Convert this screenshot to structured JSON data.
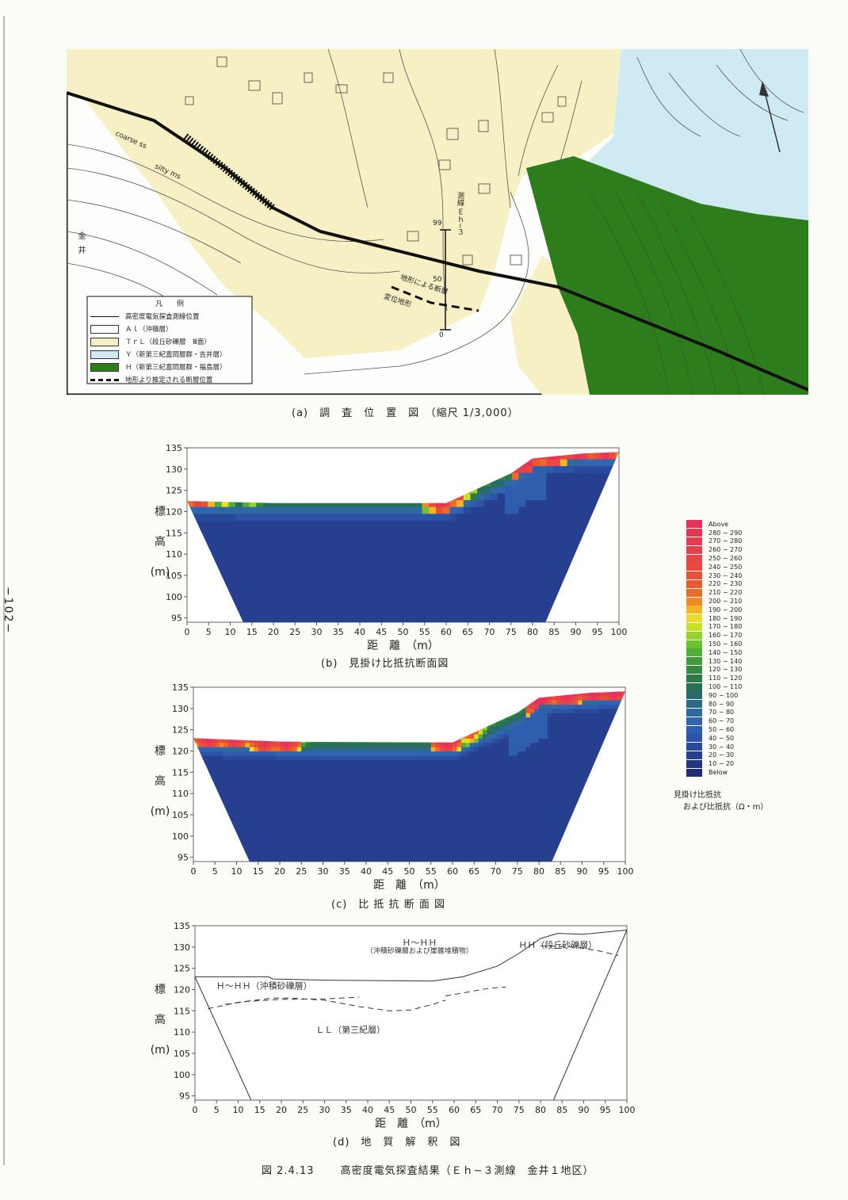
{
  "page_number": "−102−",
  "map": {
    "legend": {
      "title": "凡　　例",
      "items": [
        {
          "label": "高密度電気探査測線位置",
          "kind": "line"
        },
        {
          "label": "Ａｌ（沖積層）",
          "kind": "box",
          "color": "#ffffff"
        },
        {
          "label": "ＴｒＬ（段丘砂礫層　Ⅲ面）",
          "kind": "box",
          "color": "#f6f0c4"
        },
        {
          "label": "Ｙ（新第三紀富岡層群・吉井層）",
          "kind": "box",
          "color": "#cfeaf2"
        },
        {
          "label": "Ｈ（新第三紀富岡層群・福島層）",
          "kind": "box",
          "color": "#2e7d1d"
        },
        {
          "label": "地形より推定される断層位置",
          "kind": "dash"
        }
      ]
    },
    "labels": {
      "line_name": "測線 Ｅｈ−３",
      "label_99": "99",
      "label_50": "50",
      "label_0": "0",
      "fault_note": "地形による断層",
      "fault_note2": "変位地形",
      "place": "金井",
      "coarse": "coarse ss",
      "silty": "silty ms"
    }
  },
  "captions": {
    "a": "(a)　調　査　位　置　図　（縮尺 1/3,000）",
    "b": "(b)　見掛け比抵抗断面図",
    "c": "(c)　比 抵 抗 断 面 図",
    "d": "(d)　地　質　解　釈　図"
  },
  "figure_caption": {
    "number": "図 2.4.13",
    "title": "高密度電気探査結果（Ｅｈ−３測線　金井１地区）"
  },
  "axes": {
    "y_label_chars": [
      "標",
      "高",
      "(m)"
    ],
    "x_label": "距　離　（m）"
  },
  "colorbar": {
    "title": "見掛け比抵抗",
    "subtitle": "および比抵抗（Ω・m）",
    "entries": [
      {
        "label": "Above",
        "color": "#e8305a"
      },
      {
        "label": "280 − 290",
        "color": "#e83555"
      },
      {
        "label": "270 − 280",
        "color": "#e83a50"
      },
      {
        "label": "260 − 270",
        "color": "#e8404a"
      },
      {
        "label": "250 − 260",
        "color": "#e84545"
      },
      {
        "label": "240 − 250",
        "color": "#e84a40"
      },
      {
        "label": "230 − 240",
        "color": "#e85038"
      },
      {
        "label": "220 − 230",
        "color": "#e85a30"
      },
      {
        "label": "210 − 220",
        "color": "#ec6a2a"
      },
      {
        "label": "200 − 210",
        "color": "#f08a28"
      },
      {
        "label": "190 − 200",
        "color": "#f4b428"
      },
      {
        "label": "180 − 190",
        "color": "#eadc28"
      },
      {
        "label": "170 − 180",
        "color": "#c8e028"
      },
      {
        "label": "160 − 170",
        "color": "#96d22a"
      },
      {
        "label": "150 − 160",
        "color": "#6cc22e"
      },
      {
        "label": "140 − 150",
        "color": "#4fae34"
      },
      {
        "label": "130 − 140",
        "color": "#3e9c3a"
      },
      {
        "label": "120 − 130",
        "color": "#348a40"
      },
      {
        "label": "110 − 120",
        "color": "#2e7a46"
      },
      {
        "label": "100 − 110",
        "color": "#2a6e56"
      },
      {
        "label": "90 − 100",
        "color": "#286a6e"
      },
      {
        "label": "80 − 90",
        "color": "#2a6a88"
      },
      {
        "label": "70 − 80",
        "color": "#2e6aa0"
      },
      {
        "label": "60 − 70",
        "color": "#3066b0"
      },
      {
        "label": "50 − 60",
        "color": "#2f5eae"
      },
      {
        "label": "40 − 50",
        "color": "#2c54a6"
      },
      {
        "label": "30 − 40",
        "color": "#294a9c"
      },
      {
        "label": "20 − 30",
        "color": "#26408f"
      },
      {
        "label": "10 − 20",
        "color": "#223682"
      },
      {
        "label": "Below",
        "color": "#1f2e74"
      }
    ]
  },
  "chart_data": [
    {
      "type": "heatmap",
      "id": "b",
      "title": "見掛け比抵抗断面図",
      "xlabel": "距離（m）",
      "ylabel": "標高（m）",
      "xlim": [
        0,
        100
      ],
      "ylim": [
        94,
        135
      ],
      "xticks": [
        0,
        5,
        10,
        15,
        20,
        25,
        30,
        35,
        40,
        45,
        50,
        55,
        60,
        65,
        70,
        75,
        80,
        85,
        90,
        95,
        100
      ],
      "yticks": [
        95,
        100,
        105,
        110,
        115,
        120,
        125,
        130,
        135
      ],
      "surface": [
        [
          0,
          122.5
        ],
        [
          20,
          122.0
        ],
        [
          60,
          122.0
        ],
        [
          75,
          129
        ],
        [
          80,
          132.5
        ],
        [
          92,
          133.7
        ],
        [
          100,
          134.0
        ]
      ],
      "bottom_extent": [
        13,
        83
      ]
    },
    {
      "type": "heatmap",
      "id": "c",
      "title": "比抵抗断面図",
      "xlabel": "距離（m）",
      "ylabel": "標高（m）",
      "xlim": [
        0,
        100
      ],
      "ylim": [
        94,
        135
      ],
      "xticks": [
        0,
        5,
        10,
        15,
        20,
        25,
        30,
        35,
        40,
        45,
        50,
        55,
        60,
        65,
        70,
        75,
        80,
        85,
        90,
        95,
        100
      ],
      "yticks": [
        95,
        100,
        105,
        110,
        115,
        120,
        125,
        130,
        135
      ],
      "surface": [
        [
          0,
          123.0
        ],
        [
          20,
          122.2
        ],
        [
          60,
          122.0
        ],
        [
          75,
          129
        ],
        [
          80,
          132.5
        ],
        [
          92,
          133.7
        ],
        [
          100,
          134.0
        ]
      ],
      "bottom_extent": [
        13,
        83
      ]
    },
    {
      "type": "line",
      "id": "d",
      "title": "地質解釈図",
      "xlabel": "距離（m）",
      "ylabel": "標高（m）",
      "xlim": [
        0,
        100
      ],
      "ylim": [
        94,
        135
      ],
      "xticks": [
        0,
        5,
        10,
        15,
        20,
        25,
        30,
        35,
        40,
        45,
        50,
        55,
        60,
        65,
        70,
        75,
        80,
        85,
        90,
        95,
        100
      ],
      "yticks": [
        95,
        100,
        105,
        110,
        115,
        120,
        125,
        130,
        135
      ],
      "annotations": [
        {
          "text": "Ｈ〜ＨＨ",
          "x": 52,
          "y": 130.3
        },
        {
          "text": "（沖積砂礫層および崖錐堆積物）",
          "x": 52,
          "y": 128.6
        },
        {
          "text": "ＨＨ（段丘砂礫層）",
          "x": 84,
          "y": 129.8
        },
        {
          "text": "Ｈ〜ＨＨ（沖積砂礫層）",
          "x": 16,
          "y": 120.2
        },
        {
          "text": "ＬＬ（第三紀層）",
          "x": 36,
          "y": 109.8
        }
      ],
      "surface": [
        [
          0,
          123.0
        ],
        [
          17,
          123.0
        ],
        [
          18,
          122.5
        ],
        [
          30,
          122.2
        ],
        [
          55,
          122.0
        ],
        [
          62,
          123.0
        ],
        [
          70,
          125.5
        ],
        [
          75,
          128.5
        ],
        [
          80,
          132.0
        ],
        [
          84,
          133.2
        ],
        [
          90,
          133.0
        ],
        [
          95,
          133.5
        ],
        [
          100,
          134.0
        ]
      ],
      "series": [
        {
          "values": [
            [
              3,
              115.5
            ],
            [
              10,
              117.0
            ],
            [
              18,
              118.0
            ],
            [
              22,
              118.0
            ],
            [
              30,
              117.5
            ],
            [
              38,
              116.0
            ],
            [
              45,
              115.0
            ],
            [
              50,
              115.2
            ],
            [
              55,
              116.5
            ],
            [
              58,
              117.5
            ]
          ]
        },
        {
          "values": [
            [
              7,
              116.5
            ],
            [
              12,
              117.2
            ],
            [
              20,
              117.7
            ],
            [
              30,
              117.8
            ],
            [
              38,
              118.2
            ]
          ]
        },
        {
          "values": [
            [
              58,
              118.5
            ],
            [
              62,
              119.2
            ],
            [
              68,
              120.3
            ],
            [
              72,
              120.6
            ]
          ]
        },
        {
          "values": [
            [
              80,
              130.3
            ],
            [
              88,
              130.0
            ],
            [
              94,
              129.0
            ],
            [
              98,
              128.0
            ]
          ]
        }
      ],
      "boundaries": [
        [
          [
            0,
            123.0
          ],
          [
            13,
            94
          ]
        ],
        [
          [
            83,
            94
          ],
          [
            100,
            134.0
          ]
        ]
      ]
    }
  ]
}
